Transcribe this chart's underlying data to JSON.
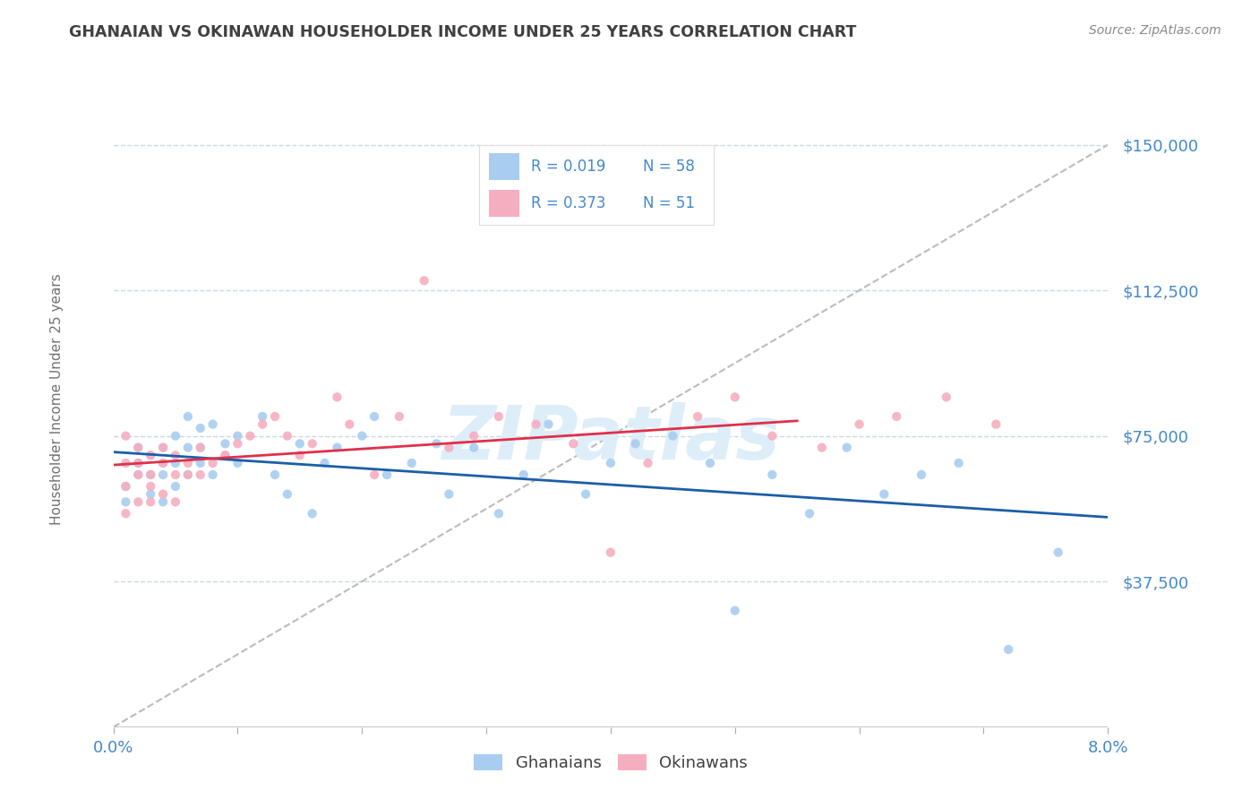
{
  "title": "GHANAIAN VS OKINAWAN HOUSEHOLDER INCOME UNDER 25 YEARS CORRELATION CHART",
  "source": "Source: ZipAtlas.com",
  "ylabel": "Householder Income Under 25 years",
  "xlim": [
    0.0,
    0.08
  ],
  "ylim": [
    0,
    168750
  ],
  "ytick_positions": [
    37500,
    75000,
    112500,
    150000
  ],
  "ytick_labels": [
    "$37,500",
    "$75,000",
    "$112,500",
    "$150,000"
  ],
  "xtick_positions": [
    0.0,
    0.01,
    0.02,
    0.03,
    0.04,
    0.05,
    0.06,
    0.07,
    0.08
  ],
  "xtick_labels": [
    "0.0%",
    "",
    "",
    "",
    "",
    "",
    "",
    "",
    "8.0%"
  ],
  "ghanaian_color": "#a8cdf0",
  "okinawan_color": "#f5aec0",
  "ghanaian_line_color": "#1a5fa8",
  "okinawan_line_color": "#e0304a",
  "ref_line_color": "#bbbbbb",
  "grid_color": "#c8daea",
  "background_color": "#ffffff",
  "title_color": "#404040",
  "ylabel_color": "#707070",
  "yticklabel_color": "#4488cc",
  "xticklabel_color": "#4488cc",
  "watermark_color": "#ddeef8",
  "legend_r_color": "#4488cc",
  "legend_n_color": "#4488cc",
  "legend_label_color": "#404040",
  "source_color": "#888888",
  "ghanaians_x": [
    0.001,
    0.001,
    0.002,
    0.002,
    0.002,
    0.003,
    0.003,
    0.003,
    0.004,
    0.004,
    0.004,
    0.004,
    0.005,
    0.005,
    0.005,
    0.006,
    0.006,
    0.006,
    0.007,
    0.007,
    0.007,
    0.008,
    0.008,
    0.009,
    0.009,
    0.01,
    0.01,
    0.012,
    0.013,
    0.014,
    0.015,
    0.016,
    0.017,
    0.018,
    0.02,
    0.021,
    0.022,
    0.024,
    0.026,
    0.027,
    0.029,
    0.031,
    0.033,
    0.035,
    0.038,
    0.04,
    0.042,
    0.045,
    0.048,
    0.05,
    0.053,
    0.056,
    0.059,
    0.062,
    0.065,
    0.068,
    0.072,
    0.076
  ],
  "ghanaians_y": [
    62000,
    58000,
    68000,
    65000,
    72000,
    70000,
    65000,
    60000,
    68000,
    72000,
    65000,
    58000,
    75000,
    68000,
    62000,
    80000,
    72000,
    65000,
    72000,
    68000,
    77000,
    65000,
    78000,
    70000,
    73000,
    68000,
    75000,
    80000,
    65000,
    60000,
    73000,
    55000,
    68000,
    72000,
    75000,
    80000,
    65000,
    68000,
    73000,
    60000,
    72000,
    55000,
    65000,
    78000,
    60000,
    68000,
    73000,
    75000,
    68000,
    30000,
    65000,
    55000,
    72000,
    60000,
    65000,
    68000,
    20000,
    45000
  ],
  "okinawans_x": [
    0.001,
    0.001,
    0.001,
    0.001,
    0.002,
    0.002,
    0.002,
    0.002,
    0.003,
    0.003,
    0.003,
    0.003,
    0.004,
    0.004,
    0.004,
    0.005,
    0.005,
    0.005,
    0.006,
    0.006,
    0.007,
    0.007,
    0.008,
    0.009,
    0.01,
    0.011,
    0.012,
    0.013,
    0.014,
    0.015,
    0.016,
    0.018,
    0.019,
    0.021,
    0.023,
    0.025,
    0.027,
    0.029,
    0.031,
    0.034,
    0.037,
    0.04,
    0.043,
    0.047,
    0.05,
    0.053,
    0.057,
    0.06,
    0.063,
    0.067,
    0.071
  ],
  "okinawans_y": [
    75000,
    62000,
    68000,
    55000,
    72000,
    65000,
    58000,
    68000,
    70000,
    65000,
    62000,
    58000,
    68000,
    72000,
    60000,
    65000,
    70000,
    58000,
    65000,
    68000,
    72000,
    65000,
    68000,
    70000,
    73000,
    75000,
    78000,
    80000,
    75000,
    70000,
    73000,
    85000,
    78000,
    65000,
    80000,
    115000,
    72000,
    75000,
    80000,
    78000,
    73000,
    45000,
    68000,
    80000,
    85000,
    75000,
    72000,
    78000,
    80000,
    85000,
    78000
  ]
}
